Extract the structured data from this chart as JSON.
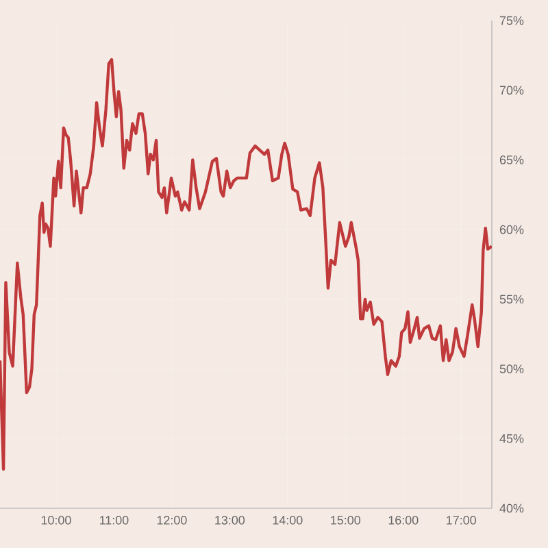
{
  "chart_data": {
    "type": "line",
    "color": "#c0393b",
    "grid": true,
    "xlim": [
      9.03,
      17.53
    ],
    "ylim": [
      40,
      75
    ],
    "xticks": [
      {
        "value": 10,
        "label": "10:00"
      },
      {
        "value": 11,
        "label": "11:00"
      },
      {
        "value": 12,
        "label": "12:00"
      },
      {
        "value": 13,
        "label": "13:00"
      },
      {
        "value": 14,
        "label": "14:00"
      },
      {
        "value": 15,
        "label": "15:00"
      },
      {
        "value": 16,
        "label": "16:00"
      },
      {
        "value": 17,
        "label": "17:00"
      }
    ],
    "yticks": [
      {
        "value": 40,
        "label": "40%"
      },
      {
        "value": 45,
        "label": "45%"
      },
      {
        "value": 50,
        "label": "50%"
      },
      {
        "value": 55,
        "label": "55%"
      },
      {
        "value": 60,
        "label": "60%"
      },
      {
        "value": 65,
        "label": "65%"
      },
      {
        "value": 70,
        "label": "70%"
      },
      {
        "value": 75,
        "label": "75%"
      }
    ],
    "x": [
      9.03,
      9.09,
      9.13,
      9.19,
      9.25,
      9.33,
      9.39,
      9.43,
      9.49,
      9.54,
      9.58,
      9.62,
      9.66,
      9.72,
      9.76,
      9.79,
      9.82,
      9.86,
      9.9,
      9.96,
      9.99,
      10.04,
      10.08,
      10.13,
      10.17,
      10.21,
      10.25,
      10.31,
      10.35,
      10.39,
      10.43,
      10.47,
      10.53,
      10.59,
      10.65,
      10.7,
      10.75,
      10.8,
      10.86,
      10.91,
      10.96,
      11.0,
      11.04,
      11.08,
      11.12,
      11.17,
      11.22,
      11.27,
      11.32,
      11.38,
      11.43,
      11.49,
      11.54,
      11.59,
      11.63,
      11.68,
      11.73,
      11.77,
      11.83,
      11.87,
      11.91,
      11.99,
      12.06,
      12.1,
      12.17,
      12.22,
      12.3,
      12.36,
      12.42,
      12.48,
      12.58,
      12.7,
      12.77,
      12.85,
      12.89,
      12.95,
      13.01,
      13.07,
      13.13,
      13.29,
      13.35,
      13.44,
      13.52,
      13.6,
      13.66,
      13.74,
      13.84,
      13.9,
      13.95,
      14.01,
      14.09,
      14.17,
      14.23,
      14.33,
      14.39,
      14.47,
      14.55,
      14.61,
      14.66,
      14.7,
      14.75,
      14.82,
      14.9,
      15.0,
      15.06,
      15.1,
      15.18,
      15.22,
      15.26,
      15.3,
      15.34,
      15.37,
      15.43,
      15.49,
      15.56,
      15.63,
      15.69,
      15.73,
      15.79,
      15.87,
      15.93,
      15.97,
      16.03,
      16.08,
      16.12,
      16.19,
      16.24,
      16.28,
      16.36,
      16.44,
      16.5,
      16.56,
      16.64,
      16.69,
      16.74,
      16.79,
      16.85,
      16.91,
      16.97,
      17.05,
      17.11,
      17.19,
      17.23,
      17.29,
      17.35,
      17.38,
      17.42,
      17.46,
      17.53
    ],
    "values": [
      50.6,
      42.8,
      56.2,
      51.2,
      50.2,
      57.6,
      55.1,
      53.9,
      48.3,
      48.7,
      50.0,
      53.9,
      54.6,
      61.0,
      61.9,
      59.8,
      60.4,
      60.1,
      58.8,
      63.7,
      62.4,
      64.9,
      63.0,
      67.3,
      66.8,
      66.6,
      65.0,
      61.7,
      64.2,
      62.7,
      61.2,
      63.0,
      63.0,
      64.0,
      66.0,
      69.1,
      67.3,
      66.0,
      68.6,
      71.9,
      72.2,
      69.9,
      68.1,
      69.9,
      68.6,
      64.4,
      66.4,
      65.7,
      67.6,
      66.9,
      68.3,
      68.3,
      66.9,
      64.0,
      65.4,
      65.0,
      66.4,
      62.7,
      62.3,
      63.0,
      61.2,
      63.7,
      62.4,
      62.7,
      61.4,
      62.0,
      61.4,
      65.0,
      63.0,
      61.5,
      62.7,
      64.9,
      65.1,
      62.7,
      62.4,
      64.2,
      63.0,
      63.5,
      63.7,
      63.7,
      65.5,
      66.0,
      65.7,
      65.4,
      65.7,
      63.5,
      63.7,
      65.4,
      66.2,
      65.4,
      62.9,
      62.7,
      61.4,
      61.5,
      61.0,
      63.7,
      64.8,
      63.0,
      59.1,
      55.8,
      57.8,
      57.5,
      60.5,
      58.8,
      59.5,
      60.5,
      58.8,
      57.8,
      53.6,
      53.6,
      55.0,
      54.2,
      54.8,
      53.2,
      53.7,
      53.4,
      50.9,
      49.6,
      50.6,
      50.2,
      50.9,
      52.6,
      52.9,
      54.1,
      51.9,
      52.9,
      53.7,
      52.2,
      52.9,
      53.1,
      52.2,
      52.1,
      53.1,
      50.6,
      52.1,
      50.6,
      51.2,
      52.9,
      51.6,
      50.9,
      52.4,
      54.6,
      53.6,
      51.6,
      54.1,
      58.5,
      60.1,
      58.6,
      58.8
    ]
  }
}
